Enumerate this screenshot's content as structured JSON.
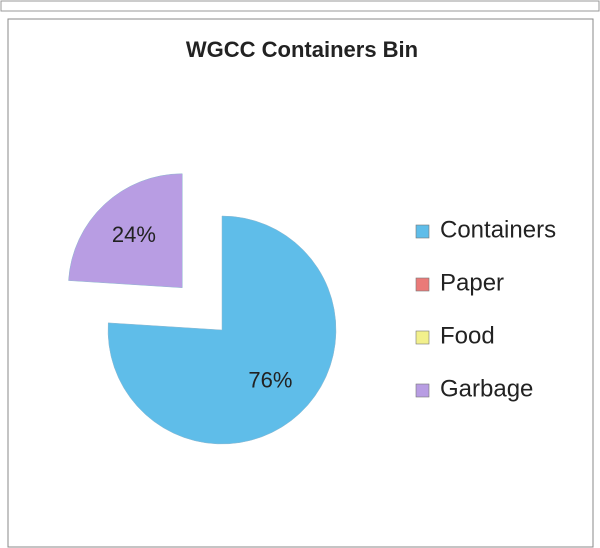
{
  "chart_data": {
    "type": "pie",
    "title": "WGCC Containers Bin",
    "categories": [
      "Containers",
      "Paper",
      "Food",
      "Garbage"
    ],
    "values": [
      76,
      0,
      0,
      24
    ],
    "value_labels": [
      "76%",
      null,
      null,
      "24%"
    ],
    "colors": [
      "#5fbde9",
      "#ea7a78",
      "#f2f08c",
      "#b89de3"
    ],
    "exploded": [
      3
    ],
    "legend": "right"
  }
}
